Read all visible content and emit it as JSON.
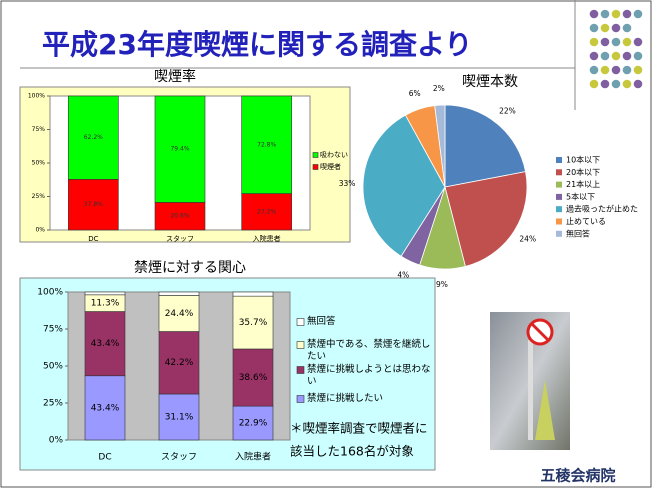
{
  "slide_title": "平成23年度喫煙に関する調査より",
  "logo": "五稜会病院",
  "chart_data": [
    {
      "type": "stacked_bar",
      "title": "喫煙率",
      "categories": [
        "DC",
        "スタッフ",
        "入院患者"
      ],
      "series": [
        {
          "name": "喫煙者",
          "color": "#ff0000",
          "values": [
            37.8,
            20.6,
            27.2
          ],
          "value_labels": [
            "37.8%",
            "20.6%",
            "27.2%"
          ]
        },
        {
          "name": "吸わない",
          "color": "#00ff00",
          "values": [
            62.2,
            79.4,
            72.8
          ],
          "value_labels": [
            "62.2%",
            "79.4%",
            "72.8%"
          ]
        }
      ],
      "ylim": [
        0,
        100
      ],
      "yticks": [
        {
          "value": 0,
          "label": "0%"
        },
        {
          "value": 25,
          "label": "25%"
        },
        {
          "value": 50,
          "label": "50%"
        },
        {
          "value": 75,
          "label": "75%"
        },
        {
          "value": 100,
          "label": "100%"
        }
      ],
      "legend": "right"
    },
    {
      "type": "pie",
      "title": "喫煙本数",
      "categories": [
        "10本以下",
        "20本以下",
        "21本以上",
        "5本以下",
        "過去吸ったが止めた",
        "止めている",
        "無回答"
      ],
      "values": [
        22,
        24,
        9,
        4,
        33,
        6,
        2
      ],
      "value_labels": [
        "22%",
        "24%",
        "9%",
        "4%",
        "33%",
        "6%",
        "2%"
      ],
      "colors": [
        "#4f81bd",
        "#c0504d",
        "#9bbb59",
        "#8064a2",
        "#4bacc6",
        "#f79646",
        "#a5b9d8"
      ],
      "legend": "right"
    },
    {
      "type": "stacked_bar",
      "title": "禁煙に対する関心",
      "categories": [
        "DC",
        "スタッフ",
        "入院患者"
      ],
      "series": [
        {
          "name": "禁煙に挑戦したい",
          "color": "#9999ff",
          "values": [
            43.4,
            31.1,
            22.9
          ],
          "value_labels": [
            "43.4%",
            "31.1%",
            "22.9%"
          ]
        },
        {
          "name": "禁煙に挑戦しようとは思わない",
          "color": "#993366",
          "values": [
            43.4,
            42.2,
            38.6
          ],
          "value_labels": [
            "43.4%",
            "42.2%",
            "38.6%"
          ]
        },
        {
          "name": "禁煙中である、禁煙を継続したい",
          "color": "#ffffcc",
          "values": [
            11.3,
            24.4,
            35.7
          ],
          "value_labels": [
            "11.3%",
            "24.4%",
            "35.7%"
          ]
        },
        {
          "name": "無回答",
          "color": "#ffffff",
          "values": [
            1.9,
            2.3,
            2.8
          ]
        }
      ],
      "ylim": [
        0,
        100
      ],
      "yticks": [
        {
          "value": 0,
          "label": "0%"
        },
        {
          "value": 25,
          "label": "25%"
        },
        {
          "value": 50,
          "label": "50%"
        },
        {
          "value": 75,
          "label": "75%"
        },
        {
          "value": 100,
          "label": "100%"
        }
      ],
      "legend": "right",
      "annotation": [
        "＊喫煙率調査で喫煙者に",
        "該当した168名が対象"
      ]
    }
  ]
}
